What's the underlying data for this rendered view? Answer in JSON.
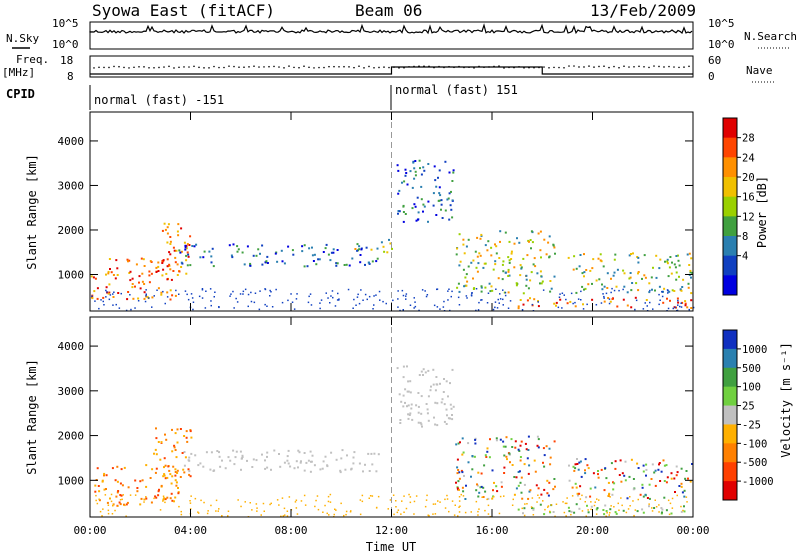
{
  "header": {
    "station": "Syowa East (fitACF)",
    "beam": "Beam 06",
    "date": "13/Feb/2009"
  },
  "status_panel": {
    "nsky_label": "N.Sky",
    "nsky_ticks": [
      "10^5",
      "10^0"
    ],
    "nsearch_label": "N.Search",
    "freq_label": "Freq.",
    "freq_unit": "[MHz]",
    "freq_ticks": [
      "18",
      "8"
    ],
    "nave_ticks": [
      "60",
      "0"
    ],
    "nave_label": "Nave",
    "cpid_label": "CPID",
    "cpid_segments": [
      {
        "start_hour": 0,
        "end_hour": 12,
        "label": "normal (fast) -151"
      },
      {
        "start_hour": 12,
        "end_hour": 24,
        "label": "normal (fast) 151"
      }
    ]
  },
  "chart_data": [
    {
      "type": "heatmap",
      "panel": "power",
      "ylabel": "Slant Range [km]",
      "xlabel": "Time UT",
      "x_ticks": [
        "00:00",
        "04:00",
        "08:00",
        "12:00",
        "16:00",
        "20:00",
        "00:00"
      ],
      "x_tick_hours": [
        0,
        4,
        8,
        12,
        16,
        20,
        24
      ],
      "y_ticks": [
        1000,
        2000,
        3000,
        4000
      ],
      "ylim": [
        180,
        4650
      ],
      "xlim_hours": [
        0,
        24
      ],
      "colorbar": {
        "label": "Power [dB]",
        "ticks": [
          "28",
          "24",
          "20",
          "16",
          "12",
          "8",
          "4"
        ],
        "colors": [
          "#e00000",
          "#ff4500",
          "#ff9000",
          "#f0c000",
          "#9ad000",
          "#40a040",
          "#2a7fb0",
          "#1040c0",
          "#0000e0"
        ]
      },
      "echo_regions": [
        {
          "t0": 0.0,
          "t1": 3.6,
          "r0": 450,
          "r1": 1400,
          "level": "strong"
        },
        {
          "t0": 2.5,
          "t1": 4.0,
          "r0": 1000,
          "r1": 2200,
          "level": "strong"
        },
        {
          "t0": 3.5,
          "t1": 11.5,
          "r0": 1200,
          "r1": 1700,
          "level": "weak"
        },
        {
          "t0": 10.5,
          "t1": 12.0,
          "r0": 1500,
          "r1": 1800,
          "level": "medium"
        },
        {
          "t0": 12.2,
          "t1": 14.5,
          "r0": 2200,
          "r1": 3600,
          "level": "weak"
        },
        {
          "t0": 14.5,
          "t1": 18.5,
          "r0": 600,
          "r1": 2000,
          "level": "medium"
        },
        {
          "t0": 17.0,
          "t1": 24.0,
          "r0": 250,
          "r1": 500,
          "level": "strong"
        },
        {
          "t0": 19.0,
          "t1": 24.0,
          "r0": 600,
          "r1": 1500,
          "level": "medium"
        }
      ]
    },
    {
      "type": "heatmap",
      "panel": "velocity",
      "ylabel": "Slant Range [km]",
      "xlabel": "Time UT",
      "x_ticks": [
        "00:00",
        "04:00",
        "08:00",
        "12:00",
        "16:00",
        "20:00",
        "00:00"
      ],
      "x_tick_hours": [
        0,
        4,
        8,
        12,
        16,
        20,
        24
      ],
      "y_ticks": [
        1000,
        2000,
        3000,
        4000
      ],
      "ylim": [
        180,
        4650
      ],
      "xlim_hours": [
        0,
        24
      ],
      "colorbar": {
        "label": "Velocity [m s⁻¹]",
        "ticks": [
          "1000",
          "500",
          "100",
          "25",
          "-25",
          "-100",
          "-500",
          "-1000"
        ],
        "colors": [
          "#1030c0",
          "#2a80b0",
          "#40a040",
          "#70d040",
          "#c0c0c0",
          "#ffb000",
          "#ff8000",
          "#ff4000",
          "#e00000"
        ]
      },
      "echo_regions": [
        {
          "t0": 0.0,
          "t1": 3.6,
          "r0": 450,
          "r1": 1400,
          "level": "negative"
        },
        {
          "t0": 2.5,
          "t1": 4.0,
          "r0": 1000,
          "r1": 2200,
          "level": "negative"
        },
        {
          "t0": 3.5,
          "t1": 11.5,
          "r0": 1200,
          "r1": 1700,
          "level": "ground"
        },
        {
          "t0": 12.2,
          "t1": 14.5,
          "r0": 2200,
          "r1": 3600,
          "level": "ground"
        },
        {
          "t0": 14.5,
          "t1": 18.5,
          "r0": 600,
          "r1": 2000,
          "level": "mixed"
        },
        {
          "t0": 17.0,
          "t1": 24.0,
          "r0": 250,
          "r1": 500,
          "level": "positive"
        },
        {
          "t0": 19.0,
          "t1": 24.0,
          "r0": 600,
          "r1": 1500,
          "level": "mixed"
        }
      ]
    }
  ]
}
